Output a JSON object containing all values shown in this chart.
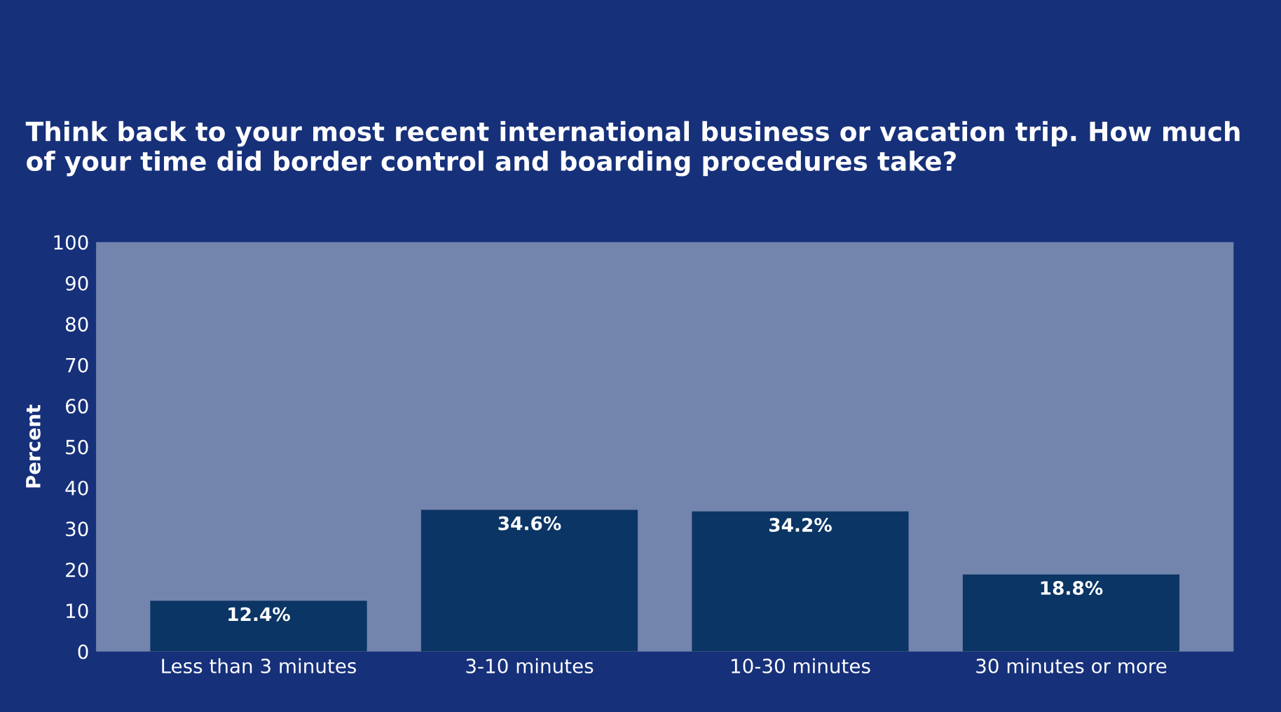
{
  "chart_data": {
    "type": "bar",
    "title": "Think back to your most recent international business or vacation trip. How much of your time did border control and boarding procedures take?",
    "ylabel": "Percent",
    "categories": [
      "Less than 3 minutes",
      "3-10 minutes",
      "10-30 minutes",
      "30 minutes or more"
    ],
    "values": [
      12.4,
      34.6,
      34.2,
      18.8
    ],
    "value_labels": [
      "12.4%",
      "34.6%",
      "34.2%",
      "18.8%"
    ],
    "color": "#0b3564",
    "ylim": [
      0,
      100
    ],
    "yticks": [
      0,
      10,
      20,
      30,
      40,
      50,
      60,
      70,
      80,
      90,
      100
    ],
    "grid": false,
    "legend": false
  }
}
